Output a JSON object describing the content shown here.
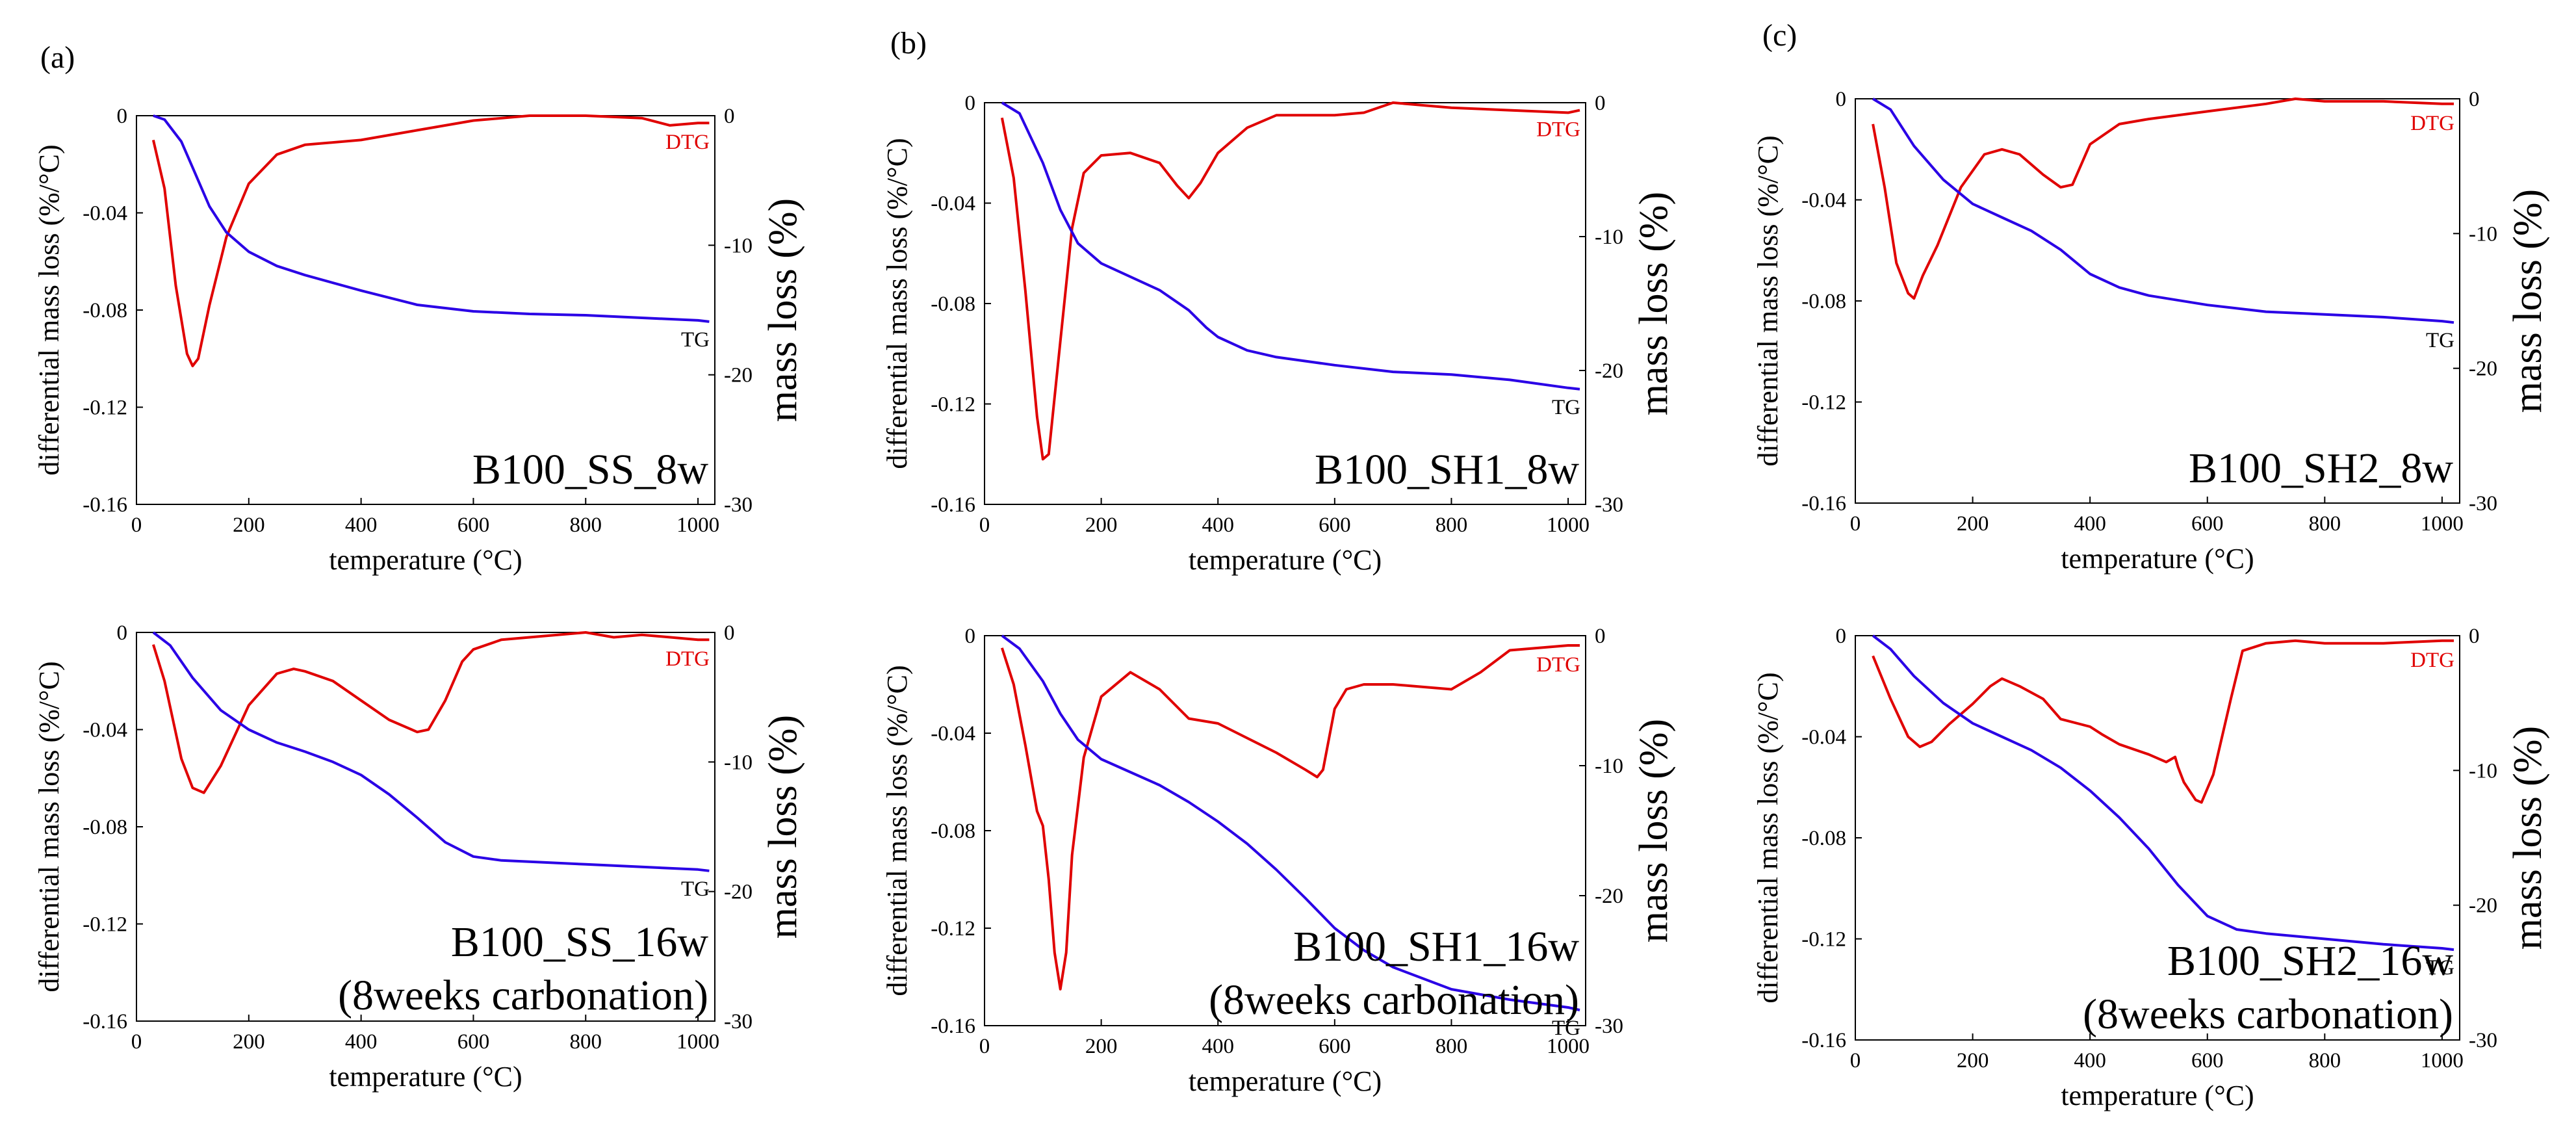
{
  "figure": {
    "panel_letters": [
      "(a)",
      "(b)",
      "(c)"
    ],
    "colors": {
      "dtg": "#e00000",
      "tg": "#2a00e6",
      "axis": "#000000"
    }
  },
  "chart_data": [
    {
      "type": "line",
      "label": "B100_SS_8w",
      "sample_lines": [
        "B100_SS_8w"
      ],
      "xlabel": "temperature (°C)",
      "ylabel_left": "differential mass loss (%/°C)",
      "ylabel_right": "mass loss (%)",
      "xlim": [
        0,
        1030
      ],
      "ylim_left": [
        -0.16,
        0
      ],
      "ylim_right": [
        -30,
        0
      ],
      "xticks": [
        "0",
        "200",
        "400",
        "600",
        "800",
        "1000"
      ],
      "yticks_left": [
        "0",
        "-0.04",
        "-0.08",
        "-0.12",
        "-0.16"
      ],
      "yticks_right": [
        "0",
        "-10",
        "-20",
        "-30"
      ],
      "series": [
        {
          "name": "DTG",
          "axis": "left",
          "x": [
            30,
            50,
            70,
            90,
            100,
            110,
            130,
            160,
            200,
            250,
            300,
            400,
            500,
            600,
            700,
            800,
            900,
            950,
            1000,
            1020
          ],
          "y": [
            -0.01,
            -0.03,
            -0.07,
            -0.098,
            -0.103,
            -0.1,
            -0.078,
            -0.05,
            -0.028,
            -0.016,
            -0.012,
            -0.01,
            -0.006,
            -0.002,
            0,
            0,
            -0.001,
            -0.004,
            -0.003,
            -0.003
          ]
        },
        {
          "name": "TG",
          "axis": "right",
          "x": [
            30,
            50,
            80,
            100,
            130,
            160,
            200,
            250,
            300,
            400,
            500,
            600,
            700,
            800,
            900,
            1000,
            1020
          ],
          "y": [
            0,
            -0.3,
            -2.0,
            -4.0,
            -7.0,
            -9.0,
            -10.5,
            -11.6,
            -12.3,
            -13.5,
            -14.6,
            -15.1,
            -15.3,
            -15.4,
            -15.6,
            -15.8,
            -15.9
          ]
        }
      ]
    },
    {
      "type": "line",
      "label": "B100_SH1_8w",
      "sample_lines": [
        "B100_SH1_8w"
      ],
      "xlabel": "temperature (°C)",
      "ylabel_left": "differential mass loss (%/°C)",
      "ylabel_right": "mass loss (%)",
      "xlim": [
        0,
        1030
      ],
      "ylim_left": [
        -0.16,
        0
      ],
      "ylim_right": [
        -30,
        0
      ],
      "xticks": [
        "0",
        "200",
        "400",
        "600",
        "800",
        "1000"
      ],
      "yticks_left": [
        "0",
        "-0.04",
        "-0.08",
        "-0.12",
        "-0.16"
      ],
      "yticks_right": [
        "0",
        "-10",
        "-20",
        "-30"
      ],
      "series": [
        {
          "name": "DTG",
          "axis": "left",
          "x": [
            30,
            50,
            70,
            90,
            100,
            110,
            130,
            150,
            170,
            200,
            250,
            300,
            330,
            350,
            370,
            400,
            450,
            500,
            600,
            650,
            700,
            800,
            900,
            1000,
            1020
          ],
          "y": [
            -0.006,
            -0.03,
            -0.075,
            -0.125,
            -0.142,
            -0.14,
            -0.095,
            -0.05,
            -0.028,
            -0.021,
            -0.02,
            -0.024,
            -0.033,
            -0.038,
            -0.032,
            -0.02,
            -0.01,
            -0.005,
            -0.005,
            -0.004,
            0,
            -0.002,
            -0.003,
            -0.004,
            -0.003
          ]
        },
        {
          "name": "TG",
          "axis": "right",
          "x": [
            30,
            60,
            100,
            130,
            160,
            200,
            250,
            300,
            350,
            380,
            400,
            450,
            500,
            600,
            700,
            800,
            900,
            1000,
            1020
          ],
          "y": [
            0,
            -0.8,
            -4.5,
            -8.0,
            -10.5,
            -12.0,
            -13.0,
            -14.0,
            -15.5,
            -16.8,
            -17.5,
            -18.5,
            -19.0,
            -19.6,
            -20.1,
            -20.3,
            -20.7,
            -21.3,
            -21.4
          ]
        }
      ]
    },
    {
      "type": "line",
      "label": "B100_SH2_8w",
      "sample_lines": [
        "B100_SH2_8w"
      ],
      "xlabel": "temperature (°C)",
      "ylabel_left": "differential mass loss (%/°C)",
      "ylabel_right": "mass loss (%)",
      "xlim": [
        0,
        1030
      ],
      "ylim_left": [
        -0.16,
        0
      ],
      "ylim_right": [
        -30,
        0
      ],
      "xticks": [
        "0",
        "200",
        "400",
        "600",
        "800",
        "1000"
      ],
      "yticks_left": [
        "0",
        "-0.04",
        "-0.08",
        "-0.12",
        "-0.16"
      ],
      "yticks_right": [
        "0",
        "-10",
        "-20",
        "-30"
      ],
      "series": [
        {
          "name": "DTG",
          "axis": "left",
          "x": [
            30,
            50,
            70,
            90,
            100,
            115,
            140,
            180,
            220,
            250,
            280,
            320,
            350,
            370,
            400,
            450,
            500,
            600,
            700,
            750,
            800,
            900,
            1000,
            1020
          ],
          "y": [
            -0.01,
            -0.035,
            -0.065,
            -0.077,
            -0.079,
            -0.07,
            -0.058,
            -0.035,
            -0.022,
            -0.02,
            -0.022,
            -0.03,
            -0.035,
            -0.034,
            -0.018,
            -0.01,
            -0.008,
            -0.005,
            -0.002,
            0,
            -0.001,
            -0.001,
            -0.002,
            -0.002
          ]
        },
        {
          "name": "TG",
          "axis": "right",
          "x": [
            30,
            60,
            100,
            150,
            200,
            250,
            300,
            350,
            400,
            450,
            500,
            600,
            700,
            800,
            900,
            1000,
            1020
          ],
          "y": [
            0,
            -0.8,
            -3.5,
            -6.0,
            -7.8,
            -8.8,
            -9.8,
            -11.2,
            -13.0,
            -14.0,
            -14.6,
            -15.3,
            -15.8,
            -16.0,
            -16.2,
            -16.5,
            -16.6
          ]
        }
      ]
    },
    {
      "type": "line",
      "label": "B100_SS_16w",
      "sample_lines": [
        "B100_SS_16w",
        "(8weeks carbonation)"
      ],
      "xlabel": "temperature (°C)",
      "ylabel_left": "differential mass loss (%/°C)",
      "ylabel_right": "mass loss (%)",
      "xlim": [
        0,
        1030
      ],
      "ylim_left": [
        -0.16,
        0
      ],
      "ylim_right": [
        -30,
        0
      ],
      "xticks": [
        "0",
        "200",
        "400",
        "600",
        "800",
        "1000"
      ],
      "yticks_left": [
        "0",
        "-0.04",
        "-0.08",
        "-0.12",
        "-0.16"
      ],
      "yticks_right": [
        "0",
        "-10",
        "-20",
        "-30"
      ],
      "series": [
        {
          "name": "DTG",
          "axis": "left",
          "x": [
            30,
            50,
            80,
            100,
            120,
            150,
            200,
            250,
            280,
            300,
            350,
            400,
            450,
            500,
            520,
            550,
            580,
            600,
            650,
            700,
            800,
            850,
            900,
            1000,
            1020
          ],
          "y": [
            -0.005,
            -0.02,
            -0.052,
            -0.064,
            -0.066,
            -0.055,
            -0.03,
            -0.017,
            -0.015,
            -0.016,
            -0.02,
            -0.028,
            -0.036,
            -0.041,
            -0.04,
            -0.028,
            -0.012,
            -0.007,
            -0.003,
            -0.002,
            0,
            -0.002,
            -0.001,
            -0.003,
            -0.003
          ]
        },
        {
          "name": "TG",
          "axis": "right",
          "x": [
            30,
            60,
            100,
            150,
            200,
            250,
            300,
            350,
            400,
            450,
            500,
            550,
            600,
            650,
            700,
            800,
            900,
            1000,
            1020
          ],
          "y": [
            0,
            -1.0,
            -3.5,
            -6.0,
            -7.5,
            -8.5,
            -9.2,
            -10.0,
            -11.0,
            -12.5,
            -14.3,
            -16.2,
            -17.3,
            -17.6,
            -17.7,
            -17.9,
            -18.1,
            -18.3,
            -18.4
          ]
        }
      ]
    },
    {
      "type": "line",
      "label": "B100_SH1_16w",
      "sample_lines": [
        "B100_SH1_16w",
        "(8weeks carbonation)"
      ],
      "xlabel": "temperature (°C)",
      "ylabel_left": "differential mass loss (%/°C)",
      "ylabel_right": "mass loss (%)",
      "xlim": [
        0,
        1030
      ],
      "ylim_left": [
        -0.16,
        0
      ],
      "ylim_right": [
        -30,
        0
      ],
      "xticks": [
        "0",
        "200",
        "400",
        "600",
        "800",
        "1000"
      ],
      "yticks_left": [
        "0",
        "-0.04",
        "-0.08",
        "-0.12",
        "-0.16"
      ],
      "yticks_right": [
        "0",
        "-10",
        "-20",
        "-30"
      ],
      "series": [
        {
          "name": "DTG",
          "axis": "left",
          "x": [
            30,
            50,
            70,
            90,
            100,
            110,
            120,
            130,
            140,
            150,
            170,
            200,
            250,
            300,
            350,
            400,
            450,
            500,
            550,
            570,
            580,
            600,
            620,
            650,
            700,
            750,
            800,
            850,
            900,
            1000,
            1020
          ],
          "y": [
            -0.005,
            -0.02,
            -0.045,
            -0.072,
            -0.078,
            -0.1,
            -0.13,
            -0.145,
            -0.13,
            -0.09,
            -0.05,
            -0.025,
            -0.015,
            -0.022,
            -0.034,
            -0.036,
            -0.042,
            -0.048,
            -0.055,
            -0.058,
            -0.055,
            -0.03,
            -0.022,
            -0.02,
            -0.02,
            -0.021,
            -0.022,
            -0.015,
            -0.006,
            -0.004,
            -0.004
          ]
        },
        {
          "name": "TG",
          "axis": "right",
          "x": [
            30,
            60,
            100,
            130,
            160,
            200,
            250,
            300,
            350,
            400,
            450,
            500,
            550,
            600,
            650,
            700,
            800,
            900,
            1000,
            1020
          ],
          "y": [
            0,
            -1.0,
            -3.5,
            -6.0,
            -8.0,
            -9.5,
            -10.5,
            -11.5,
            -12.8,
            -14.3,
            -16.0,
            -18.0,
            -20.2,
            -22.5,
            -24.2,
            -25.5,
            -27.2,
            -28.0,
            -28.6,
            -28.8
          ]
        }
      ]
    },
    {
      "type": "line",
      "label": "B100_SH2_16w",
      "sample_lines": [
        "B100_SH2_16w",
        "(8weeks carbonation)"
      ],
      "xlabel": "temperature (°C)",
      "ylabel_left": "differential mass loss (%/°C)",
      "ylabel_right": "mass loss (%)",
      "xlim": [
        0,
        1030
      ],
      "ylim_left": [
        -0.16,
        0
      ],
      "ylim_right": [
        -30,
        0
      ],
      "xticks": [
        "0",
        "200",
        "400",
        "600",
        "800",
        "1000"
      ],
      "yticks_left": [
        "0",
        "-0.04",
        "-0.08",
        "-0.12",
        "-0.16"
      ],
      "yticks_right": [
        "0",
        "-10",
        "-20",
        "-30"
      ],
      "series": [
        {
          "name": "DTG",
          "axis": "left",
          "x": [
            30,
            60,
            90,
            110,
            130,
            160,
            200,
            230,
            250,
            280,
            320,
            350,
            400,
            420,
            450,
            500,
            530,
            545,
            550,
            560,
            580,
            590,
            610,
            640,
            660,
            700,
            750,
            800,
            900,
            1000,
            1020
          ],
          "y": [
            -0.008,
            -0.025,
            -0.04,
            -0.044,
            -0.042,
            -0.035,
            -0.027,
            -0.02,
            -0.017,
            -0.02,
            -0.025,
            -0.033,
            -0.036,
            -0.039,
            -0.043,
            -0.047,
            -0.05,
            -0.048,
            -0.052,
            -0.058,
            -0.065,
            -0.066,
            -0.055,
            -0.025,
            -0.006,
            -0.003,
            -0.002,
            -0.003,
            -0.003,
            -0.002,
            -0.002
          ]
        },
        {
          "name": "TG",
          "axis": "right",
          "x": [
            30,
            60,
            100,
            150,
            200,
            250,
            300,
            350,
            400,
            450,
            500,
            550,
            600,
            650,
            700,
            800,
            900,
            1000,
            1020
          ],
          "y": [
            0,
            -1.0,
            -3.0,
            -5.0,
            -6.5,
            -7.5,
            -8.5,
            -9.8,
            -11.5,
            -13.5,
            -15.8,
            -18.5,
            -20.8,
            -21.8,
            -22.1,
            -22.5,
            -22.9,
            -23.2,
            -23.3
          ]
        }
      ]
    }
  ]
}
